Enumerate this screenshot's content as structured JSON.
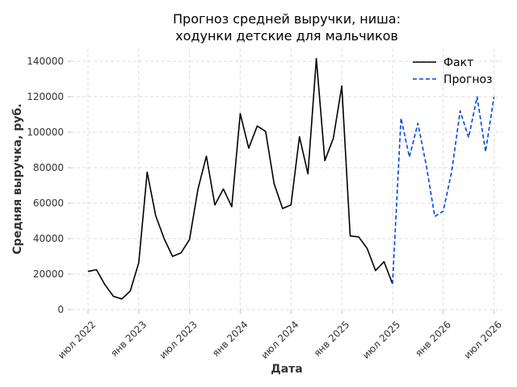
{
  "chart_data": {
    "type": "line",
    "title_line1": "Прогноз средней выручки, ниша:",
    "title_line2": "ходунки детские для мальчиков",
    "xlabel": "Дата",
    "ylabel": "Средняя выручка, руб.",
    "ylim": [
      0,
      148000
    ],
    "grid": true,
    "legend_placement": "top-right",
    "y_ticks": [
      0,
      20000,
      40000,
      60000,
      80000,
      100000,
      120000,
      140000
    ],
    "y_tick_labels": [
      "0",
      "20000",
      "40000",
      "60000",
      "80000",
      "100000",
      "120000",
      "140000"
    ],
    "x_ticks": [
      {
        "date": "2022-07",
        "label": "июл 2022"
      },
      {
        "date": "2023-01",
        "label": "янв 2023"
      },
      {
        "date": "2023-07",
        "label": "июл 2023"
      },
      {
        "date": "2024-01",
        "label": "янв 2024"
      },
      {
        "date": "2024-07",
        "label": "июл 2024"
      },
      {
        "date": "2025-01",
        "label": "янв 2025"
      },
      {
        "date": "2025-07",
        "label": "июл 2025"
      },
      {
        "date": "2026-01",
        "label": "янв 2026"
      },
      {
        "date": "2026-07",
        "label": "июл 2026"
      }
    ],
    "series": [
      {
        "name": "Факт",
        "color": "#000000",
        "dash": "solid",
        "points": [
          [
            "2022-07",
            21500
          ],
          [
            "2022-08",
            22500
          ],
          [
            "2022-09",
            14000
          ],
          [
            "2022-10",
            7500
          ],
          [
            "2022-11",
            6000
          ],
          [
            "2022-12",
            10500
          ],
          [
            "2023-01",
            26500
          ],
          [
            "2023-02",
            77500
          ],
          [
            "2023-03",
            53000
          ],
          [
            "2023-04",
            40000
          ],
          [
            "2023-05",
            30000
          ],
          [
            "2023-06",
            32000
          ],
          [
            "2023-07",
            39500
          ],
          [
            "2023-08",
            68000
          ],
          [
            "2023-09",
            86500
          ],
          [
            "2023-10",
            59000
          ],
          [
            "2023-11",
            68000
          ],
          [
            "2023-12",
            58000
          ],
          [
            "2024-01",
            110500
          ],
          [
            "2024-02",
            91000
          ],
          [
            "2024-03",
            103500
          ],
          [
            "2024-04",
            100500
          ],
          [
            "2024-05",
            71000
          ],
          [
            "2024-06",
            57000
          ],
          [
            "2024-07",
            59000
          ],
          [
            "2024-08",
            97500
          ],
          [
            "2024-09",
            76500
          ],
          [
            "2024-10",
            141500
          ],
          [
            "2024-11",
            84000
          ],
          [
            "2024-12",
            96500
          ],
          [
            "2025-01",
            126000
          ],
          [
            "2025-02",
            41500
          ],
          [
            "2025-03",
            41000
          ],
          [
            "2025-04",
            34500
          ],
          [
            "2025-05",
            22000
          ],
          [
            "2025-06",
            27000
          ],
          [
            "2025-07",
            14500
          ]
        ]
      },
      {
        "name": "Прогноз",
        "color": "#0047d6",
        "dash": "dashed",
        "points": [
          [
            "2025-07",
            14500
          ],
          [
            "2025-08",
            108000
          ],
          [
            "2025-09",
            86000
          ],
          [
            "2025-10",
            105000
          ],
          [
            "2025-11",
            81000
          ],
          [
            "2025-12",
            52500
          ],
          [
            "2026-01",
            55500
          ],
          [
            "2026-02",
            78000
          ],
          [
            "2026-03",
            112000
          ],
          [
            "2026-04",
            97000
          ],
          [
            "2026-05",
            120000
          ],
          [
            "2026-06",
            89000
          ],
          [
            "2026-07",
            120000
          ]
        ]
      }
    ]
  }
}
